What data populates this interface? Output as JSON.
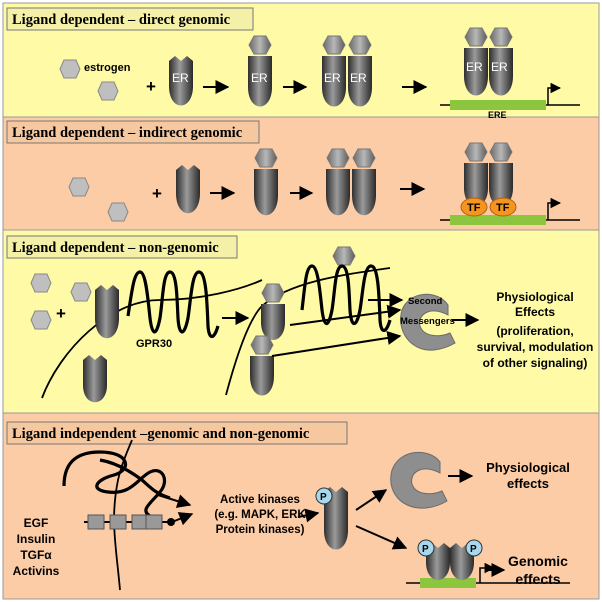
{
  "panels": [
    {
      "title": "Ligand dependent – direct genomic"
    },
    {
      "title": "Ligand dependent – indirect genomic"
    },
    {
      "title": "Ligand dependent – non-genomic"
    },
    {
      "title": "Ligand independent –genomic and non-genomic"
    }
  ],
  "labels": {
    "estrogen": "estrogen",
    "receptor": "ER",
    "element": "ERE",
    "transcription_factor": "TF",
    "plus": "+",
    "gpr30": "GPR30",
    "second_messengers": [
      "Second",
      "Messengers"
    ],
    "physiological_effects_3": [
      "Physiological",
      "Effects",
      "(proliferation,",
      "survival, modulation",
      "of other signaling)"
    ],
    "active_kinases": [
      "Active kinases",
      "(e.g. MAPK, ERK",
      "Protein kinases)"
    ],
    "growth_factors": [
      "EGF",
      "Insulin",
      "TGFα",
      "Activins"
    ],
    "phospho": "P",
    "physiological_effects_4": [
      "Physiological",
      "effects"
    ],
    "genomic_effects": [
      "Genomic",
      "effects"
    ]
  },
  "colors": {
    "panel_yellow": "#FEFAA6",
    "panel_peach": "#FCCCA6",
    "title_box_yellow": "#F5F0A8",
    "title_box_peach": "#F6C8A0",
    "ligand": "#BFBFBF",
    "dna_element": "#8CC63F",
    "tf": "#F5941E",
    "phospho": "#A8D8EE"
  }
}
